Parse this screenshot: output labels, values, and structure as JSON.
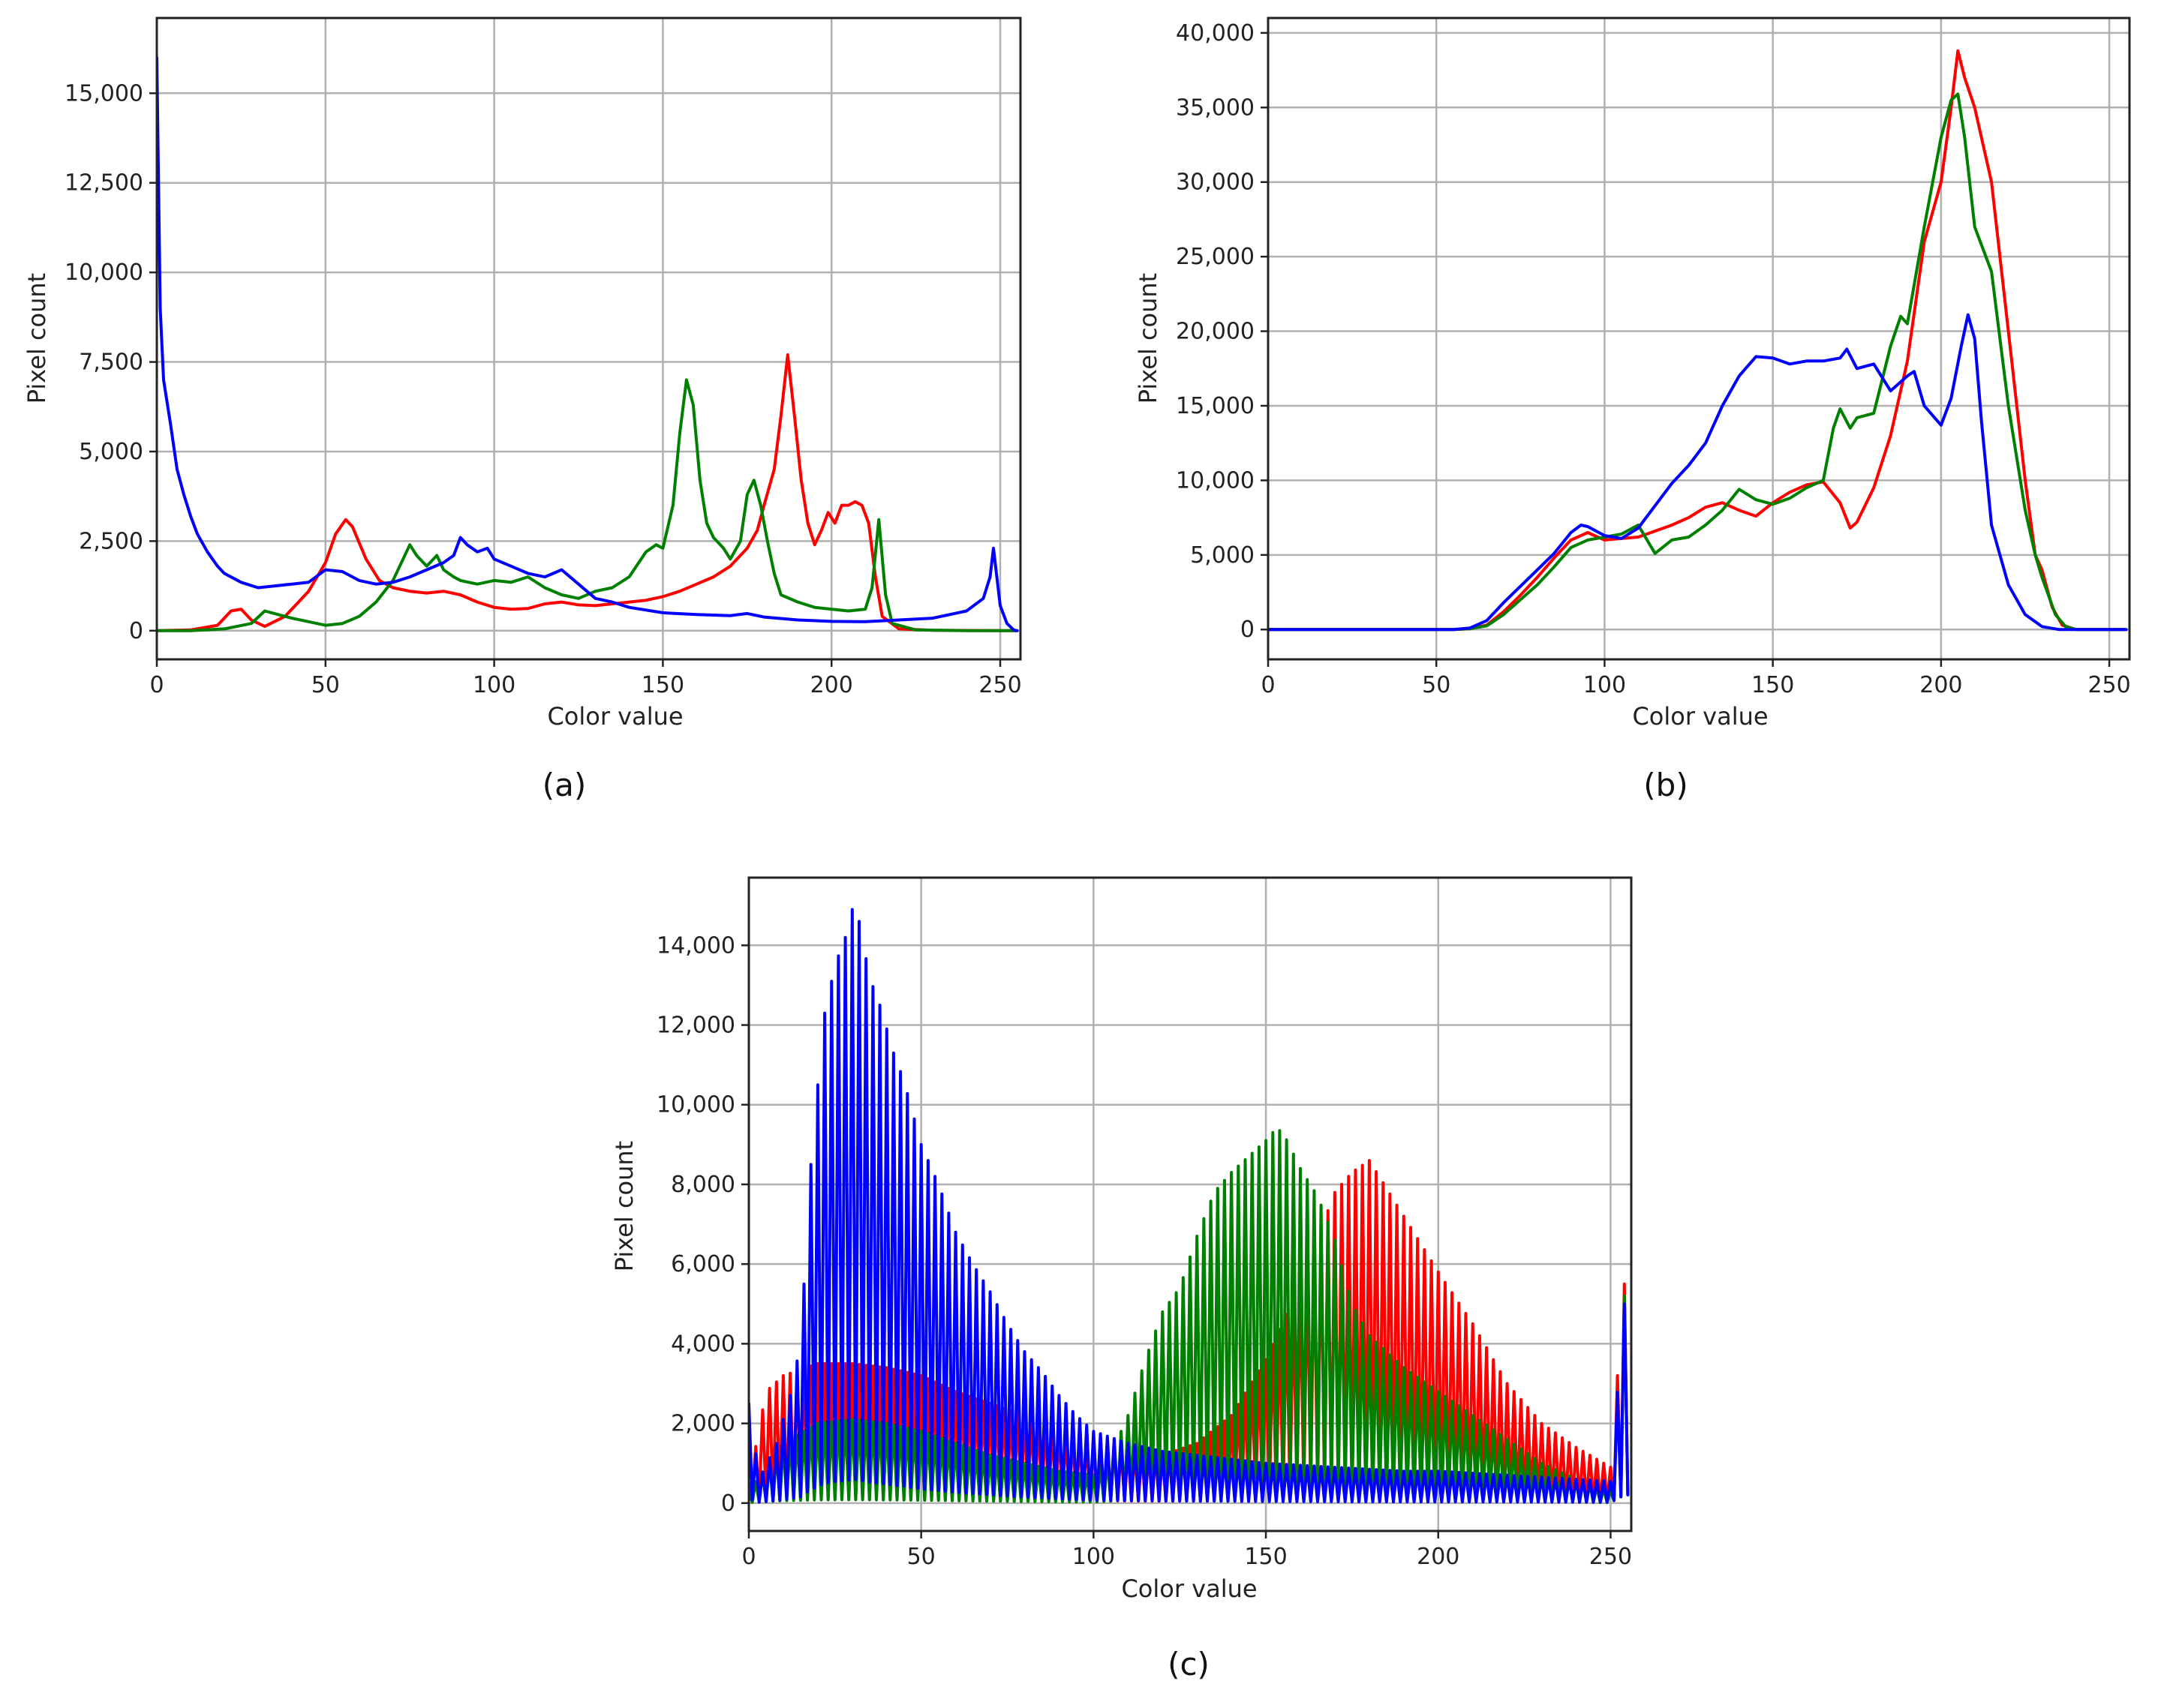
{
  "chart_data": [
    {
      "panel": "a",
      "caption": "(a)",
      "type": "line",
      "title": "",
      "xlabel": "Color value",
      "ylabel": "Pixel count",
      "xlim": [
        0,
        256
      ],
      "ylim": [
        -800,
        17100
      ],
      "xticks": [
        0,
        50,
        100,
        150,
        200,
        250
      ],
      "xtick_labels": [
        "0",
        "50",
        "100",
        "150",
        "200",
        "250"
      ],
      "yticks": [
        0,
        2500,
        5000,
        7500,
        10000,
        12500,
        15000
      ],
      "ytick_labels": [
        "0",
        "2,500",
        "5,000",
        "7,500",
        "10,000",
        "12,500",
        "15,000"
      ],
      "grid": true,
      "legend": "none",
      "series": [
        {
          "color": "#ff0000",
          "x": [
            0,
            10,
            18,
            22,
            25,
            28,
            32,
            38,
            45,
            50,
            53,
            56,
            58,
            62,
            66,
            70,
            75,
            80,
            85,
            90,
            95,
            100,
            105,
            110,
            115,
            120,
            125,
            130,
            135,
            140,
            145,
            150,
            155,
            160,
            165,
            170,
            175,
            178,
            180,
            183,
            185,
            187,
            189,
            191,
            193,
            195,
            197,
            199,
            201,
            203,
            205,
            207,
            209,
            211,
            213,
            215,
            220,
            230,
            240,
            250,
            255
          ],
          "y": [
            0,
            20,
            150,
            550,
            600,
            300,
            120,
            400,
            1100,
            1900,
            2700,
            3100,
            2900,
            2000,
            1400,
            1200,
            1100,
            1050,
            1100,
            1000,
            800,
            650,
            600,
            620,
            750,
            800,
            720,
            700,
            750,
            800,
            850,
            950,
            1100,
            1300,
            1500,
            1800,
            2300,
            2800,
            3500,
            4500,
            6000,
            7700,
            6000,
            4200,
            3000,
            2400,
            2800,
            3300,
            3000,
            3500,
            3500,
            3600,
            3500,
            3000,
            1500,
            400,
            50,
            10,
            5,
            2,
            0
          ]
        },
        {
          "color": "#008000",
          "x": [
            0,
            10,
            20,
            28,
            32,
            36,
            40,
            45,
            50,
            55,
            60,
            65,
            70,
            73,
            75,
            77,
            80,
            83,
            85,
            88,
            90,
            95,
            100,
            105,
            110,
            115,
            120,
            125,
            130,
            135,
            140,
            145,
            148,
            150,
            153,
            155,
            157,
            159,
            161,
            163,
            165,
            168,
            170,
            173,
            175,
            177,
            179,
            181,
            183,
            185,
            190,
            195,
            200,
            205,
            210,
            212,
            214,
            216,
            218,
            225,
            240,
            255
          ],
          "y": [
            0,
            0,
            50,
            200,
            550,
            450,
            350,
            250,
            150,
            200,
            400,
            800,
            1400,
            2000,
            2400,
            2100,
            1800,
            2100,
            1700,
            1500,
            1400,
            1300,
            1400,
            1350,
            1500,
            1200,
            1000,
            900,
            1100,
            1200,
            1500,
            2200,
            2400,
            2300,
            3500,
            5500,
            7000,
            6300,
            4200,
            3000,
            2600,
            2300,
            2000,
            2500,
            3800,
            4200,
            3500,
            2500,
            1600,
            1000,
            800,
            650,
            600,
            550,
            600,
            1200,
            3100,
            1000,
            200,
            20,
            0,
            0
          ]
        },
        {
          "color": "#0000ff",
          "x": [
            0,
            1,
            2,
            4,
            6,
            8,
            10,
            12,
            15,
            18,
            20,
            25,
            30,
            35,
            40,
            45,
            50,
            55,
            60,
            65,
            70,
            75,
            80,
            85,
            88,
            90,
            92,
            95,
            98,
            100,
            105,
            110,
            115,
            120,
            125,
            130,
            135,
            140,
            150,
            160,
            170,
            175,
            180,
            190,
            200,
            210,
            220,
            230,
            240,
            245,
            247,
            248,
            249,
            250,
            252,
            254,
            255
          ],
          "y": [
            16000,
            9000,
            7000,
            5800,
            4500,
            3800,
            3200,
            2700,
            2200,
            1800,
            1600,
            1350,
            1200,
            1250,
            1300,
            1350,
            1700,
            1650,
            1400,
            1300,
            1350,
            1500,
            1700,
            1900,
            2100,
            2600,
            2400,
            2200,
            2300,
            2000,
            1800,
            1600,
            1500,
            1700,
            1300,
            900,
            800,
            650,
            500,
            450,
            420,
            480,
            380,
            300,
            260,
            250,
            300,
            350,
            550,
            900,
            1500,
            2300,
            1500,
            700,
            200,
            20,
            0
          ]
        }
      ]
    },
    {
      "panel": "b",
      "caption": "(b)",
      "type": "line",
      "title": "",
      "xlabel": "Color value",
      "ylabel": "Pixel count",
      "xlim": [
        0,
        256
      ],
      "ylim": [
        -2000,
        41000
      ],
      "xticks": [
        0,
        50,
        100,
        150,
        200,
        250
      ],
      "xtick_labels": [
        "0",
        "50",
        "100",
        "150",
        "200",
        "250"
      ],
      "yticks": [
        0,
        5000,
        10000,
        15000,
        20000,
        25000,
        30000,
        35000,
        40000
      ],
      "ytick_labels": [
        "0",
        "5,000",
        "10,000",
        "15,000",
        "20,000",
        "25,000",
        "30,000",
        "35,000",
        "40,000"
      ],
      "grid": true,
      "legend": "none",
      "series": [
        {
          "color": "#ff0000",
          "x": [
            0,
            55,
            60,
            65,
            70,
            75,
            80,
            85,
            90,
            95,
            100,
            105,
            110,
            115,
            120,
            125,
            130,
            135,
            140,
            145,
            150,
            155,
            160,
            165,
            170,
            173,
            175,
            180,
            185,
            190,
            195,
            200,
            203,
            205,
            207,
            210,
            215,
            220,
            225,
            228,
            230,
            233,
            236,
            240,
            255
          ],
          "y": [
            0,
            0,
            50,
            300,
            1200,
            2300,
            3500,
            4800,
            6000,
            6500,
            6000,
            6100,
            6200,
            6600,
            7000,
            7500,
            8200,
            8500,
            8000,
            7600,
            8500,
            9200,
            9700,
            9900,
            8500,
            6800,
            7200,
            9500,
            13000,
            18000,
            26000,
            30000,
            35000,
            38800,
            37000,
            35000,
            30000,
            20000,
            10000,
            5000,
            4000,
            1500,
            300,
            0,
            0
          ]
        },
        {
          "color": "#008000",
          "x": [
            0,
            55,
            60,
            65,
            70,
            75,
            80,
            85,
            90,
            95,
            100,
            105,
            110,
            115,
            120,
            125,
            130,
            135,
            140,
            145,
            150,
            155,
            160,
            165,
            168,
            170,
            173,
            175,
            180,
            185,
            188,
            190,
            195,
            200,
            203,
            205,
            207,
            210,
            215,
            220,
            225,
            228,
            230,
            234,
            237,
            240,
            255
          ],
          "y": [
            0,
            0,
            50,
            250,
            1000,
            2000,
            3000,
            4200,
            5500,
            6000,
            6200,
            6400,
            7000,
            5100,
            6000,
            6200,
            7000,
            8000,
            9400,
            8700,
            8400,
            8800,
            9500,
            10000,
            13500,
            14800,
            13500,
            14200,
            14500,
            19000,
            21000,
            20500,
            27000,
            33000,
            35500,
            35900,
            33000,
            27000,
            24000,
            15000,
            8000,
            5000,
            3500,
            1000,
            200,
            0,
            0
          ]
        },
        {
          "color": "#0000ff",
          "x": [
            0,
            55,
            60,
            65,
            70,
            75,
            80,
            85,
            90,
            93,
            95,
            100,
            105,
            110,
            115,
            120,
            125,
            130,
            135,
            140,
            145,
            150,
            155,
            160,
            165,
            170,
            172,
            175,
            180,
            185,
            190,
            192,
            195,
            200,
            203,
            206,
            208,
            210,
            212,
            215,
            220,
            225,
            230,
            235,
            240,
            255
          ],
          "y": [
            0,
            0,
            100,
            600,
            1800,
            2900,
            4000,
            5100,
            6500,
            7000,
            6900,
            6300,
            6100,
            6800,
            8300,
            9800,
            11000,
            12500,
            15000,
            17000,
            18300,
            18200,
            17800,
            18000,
            18000,
            18200,
            18800,
            17500,
            17800,
            16000,
            17000,
            17300,
            15000,
            13700,
            15500,
            19000,
            21100,
            19500,
            14000,
            7000,
            3000,
            1000,
            200,
            0,
            0,
            0
          ]
        }
      ]
    },
    {
      "panel": "c",
      "caption": "(c)",
      "type": "line",
      "title": "",
      "xlabel": "Color value",
      "ylabel": "Pixel count",
      "xlim": [
        0,
        256
      ],
      "ylim": [
        -700,
        15700
      ],
      "xticks": [
        0,
        50,
        100,
        150,
        200,
        250
      ],
      "xtick_labels": [
        "0",
        "50",
        "100",
        "150",
        "200",
        "250"
      ],
      "yticks": [
        0,
        2000,
        4000,
        6000,
        8000,
        10000,
        12000,
        14000
      ],
      "ytick_labels": [
        "0",
        "2,000",
        "4,000",
        "6,000",
        "8,000",
        "10,000",
        "12,000",
        "14,000"
      ],
      "grid": true,
      "legend": "none",
      "series": [
        {
          "color": "#ff0000",
          "comb": true,
          "peak_x": [
            0,
            5,
            10,
            20,
            30,
            40,
            50,
            60,
            70,
            80,
            90,
            100,
            110,
            120,
            130,
            140,
            150,
            160,
            170,
            175,
            180,
            190,
            200,
            210,
            220,
            230,
            240,
            250,
            254,
            255
          ],
          "peak_y": [
            500,
            2800,
            3200,
            3500,
            3500,
            3400,
            3200,
            2800,
            2500,
            2200,
            1800,
            1500,
            1300,
            1200,
            1500,
            2200,
            3600,
            5500,
            7800,
            8300,
            8600,
            7200,
            5800,
            4500,
            3000,
            2000,
            1400,
            900,
            5500,
            5600
          ]
        },
        {
          "color": "#008000",
          "comb": true,
          "peak_x": [
            0,
            10,
            20,
            30,
            40,
            50,
            60,
            70,
            80,
            90,
            100,
            105,
            110,
            115,
            120,
            125,
            130,
            135,
            140,
            145,
            150,
            153,
            155,
            160,
            165,
            170,
            175,
            180,
            190,
            200,
            210,
            220,
            230,
            240,
            250,
            254,
            255
          ],
          "peak_y": [
            300,
            1500,
            2000,
            2100,
            2000,
            1800,
            1500,
            1200,
            1000,
            800,
            700,
            1200,
            2200,
            3600,
            4800,
            5400,
            6700,
            7800,
            8300,
            8700,
            9100,
            9400,
            9300,
            8400,
            7700,
            6600,
            5000,
            4200,
            3400,
            2800,
            2200,
            1600,
            1000,
            600,
            300,
            5200,
            5300
          ]
        },
        {
          "color": "#0000ff",
          "comb": true,
          "peak_x": [
            0,
            3,
            8,
            12,
            15,
            18,
            20,
            22,
            25,
            28,
            30,
            32,
            35,
            38,
            40,
            42,
            45,
            50,
            55,
            60,
            65,
            70,
            75,
            80,
            85,
            90,
            95,
            100,
            110,
            120,
            130,
            140,
            150,
            160,
            170,
            180,
            190,
            200,
            210,
            220,
            230,
            240,
            250,
            254,
            255
          ],
          "peak_y": [
            2500,
            600,
            1500,
            2700,
            4000,
            8500,
            10500,
            12300,
            13500,
            14200,
            14900,
            14600,
            13200,
            12500,
            11900,
            11300,
            10600,
            9000,
            8000,
            6800,
            6000,
            5300,
            4500,
            3800,
            3300,
            2700,
            2200,
            1800,
            1500,
            1300,
            1200,
            1100,
            1000,
            950,
            900,
            850,
            800,
            800,
            750,
            700,
            650,
            600,
            550,
            5000,
            5100
          ]
        }
      ]
    }
  ]
}
